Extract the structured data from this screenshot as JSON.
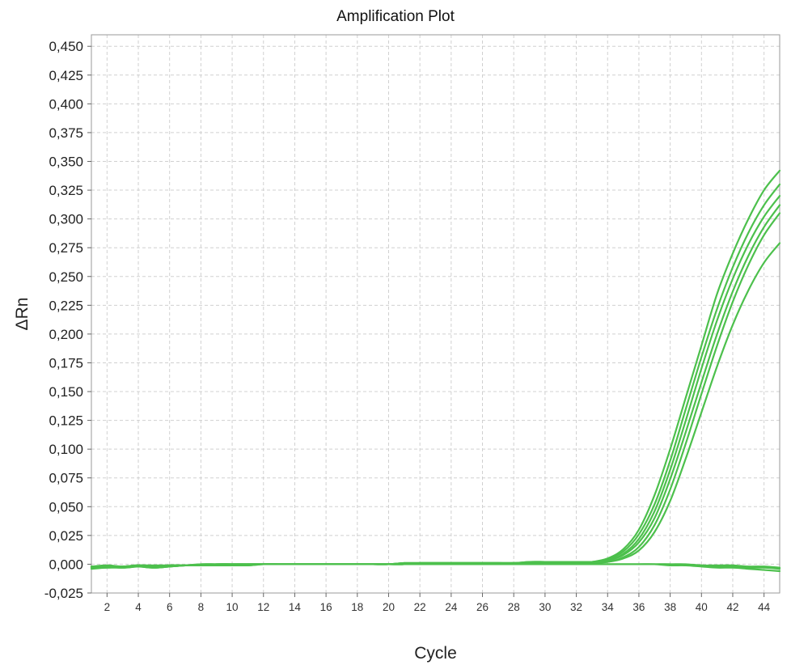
{
  "chart_data": {
    "type": "line",
    "title": "Amplification Plot",
    "xlabel": "Cycle",
    "ylabel": "ΔRn",
    "xlim": [
      1,
      45
    ],
    "ylim": [
      -0.025,
      0.46
    ],
    "grid": true,
    "x_ticks": [
      2,
      4,
      6,
      8,
      10,
      12,
      14,
      16,
      18,
      20,
      22,
      24,
      26,
      28,
      30,
      32,
      34,
      36,
      38,
      40,
      42,
      44
    ],
    "x_tick_labels": [
      "2",
      "4",
      "6",
      "8",
      "10",
      "12",
      "14",
      "16",
      "18",
      "20",
      "22",
      "24",
      "26",
      "28",
      "30",
      "32",
      "34",
      "36",
      "38",
      "40",
      "42",
      "44"
    ],
    "y_ticks": [
      -0.025,
      0,
      0.025,
      0.05,
      0.075,
      0.1,
      0.125,
      0.15,
      0.175,
      0.2,
      0.225,
      0.25,
      0.275,
      0.3,
      0.325,
      0.35,
      0.375,
      0.4,
      0.425,
      0.45
    ],
    "y_tick_labels": [
      "-0,025",
      "0,000",
      "0,025",
      "0,050",
      "0,075",
      "0,100",
      "0,125",
      "0,150",
      "0,175",
      "0,200",
      "0,225",
      "0,250",
      "0,275",
      "0,300",
      "0,325",
      "0,350",
      "0,375",
      "0,400",
      "0,425",
      "0,450"
    ],
    "line_color": "#4cc04c",
    "x": [
      1,
      2,
      3,
      4,
      5,
      6,
      7,
      8,
      9,
      10,
      11,
      12,
      13,
      14,
      15,
      16,
      17,
      18,
      19,
      20,
      21,
      22,
      23,
      24,
      25,
      26,
      27,
      28,
      29,
      30,
      31,
      32,
      33,
      34,
      35,
      36,
      37,
      38,
      39,
      40,
      41,
      42,
      43,
      44,
      45
    ],
    "series": [
      {
        "values": [
          -0.003,
          -0.002,
          -0.003,
          -0.002,
          -0.003,
          -0.002,
          -0.001,
          -0.001,
          -0.001,
          -0.001,
          -0.001,
          0,
          0,
          0,
          0,
          0,
          0,
          0,
          0,
          0,
          0,
          0.001,
          0.001,
          0.001,
          0.001,
          0.001,
          0.001,
          0.001,
          0.001,
          0.001,
          0.001,
          0.001,
          0.002,
          0.005,
          0.013,
          0.03,
          0.06,
          0.1,
          0.145,
          0.19,
          0.235,
          0.27,
          0.3,
          0.325,
          0.342
        ]
      },
      {
        "values": [
          -0.002,
          -0.001,
          -0.002,
          -0.001,
          -0.002,
          -0.001,
          -0.001,
          -0.001,
          0,
          0,
          0,
          0,
          0,
          0,
          0,
          0,
          0,
          0,
          0,
          0,
          0.001,
          0.001,
          0.001,
          0.001,
          0.001,
          0.001,
          0.001,
          0.001,
          0.001,
          0.001,
          0.001,
          0.001,
          0.002,
          0.004,
          0.011,
          0.026,
          0.052,
          0.09,
          0.135,
          0.18,
          0.222,
          0.258,
          0.288,
          0.312,
          0.33
        ]
      },
      {
        "values": [
          -0.003,
          -0.003,
          -0.002,
          -0.002,
          -0.003,
          -0.002,
          -0.001,
          -0.001,
          -0.001,
          -0.001,
          0,
          0,
          0,
          0,
          0,
          0,
          0,
          0,
          0,
          0,
          0,
          0.001,
          0.001,
          0.001,
          0.001,
          0.001,
          0.001,
          0.001,
          0.002,
          0.002,
          0.002,
          0.002,
          0.002,
          0.003,
          0.009,
          0.022,
          0.046,
          0.082,
          0.125,
          0.17,
          0.212,
          0.248,
          0.278,
          0.302,
          0.32
        ]
      },
      {
        "values": [
          -0.002,
          -0.002,
          -0.002,
          -0.001,
          -0.002,
          -0.001,
          -0.001,
          0,
          0,
          0,
          0,
          0,
          0,
          0,
          0,
          0,
          0,
          0,
          0,
          0,
          0.001,
          0.001,
          0.001,
          0.001,
          0.001,
          0.001,
          0.001,
          0.001,
          0.001,
          0.001,
          0.001,
          0.001,
          0.001,
          0.003,
          0.008,
          0.019,
          0.04,
          0.074,
          0.115,
          0.158,
          0.2,
          0.237,
          0.268,
          0.293,
          0.312
        ]
      },
      {
        "values": [
          -0.003,
          -0.002,
          -0.002,
          -0.002,
          -0.002,
          -0.001,
          -0.001,
          -0.001,
          0,
          0,
          0,
          0,
          0,
          0,
          0,
          0,
          0,
          0,
          0,
          0,
          0,
          0.001,
          0.001,
          0.001,
          0.001,
          0.001,
          0.001,
          0.001,
          0.002,
          0.002,
          0.002,
          0.002,
          0.002,
          0.002,
          0.006,
          0.015,
          0.034,
          0.065,
          0.105,
          0.148,
          0.19,
          0.228,
          0.26,
          0.286,
          0.305
        ]
      },
      {
        "values": [
          -0.002,
          -0.002,
          -0.003,
          -0.002,
          -0.002,
          -0.001,
          -0.001,
          -0.001,
          -0.001,
          0,
          0,
          0,
          0,
          0,
          0,
          0,
          0,
          0,
          0,
          0,
          0.001,
          0.001,
          0.001,
          0.001,
          0.001,
          0.001,
          0.001,
          0.001,
          0.001,
          0.001,
          0.001,
          0.001,
          0.001,
          0.002,
          0.005,
          0.012,
          0.028,
          0.055,
          0.092,
          0.132,
          0.172,
          0.208,
          0.238,
          0.262,
          0.279
        ]
      },
      {
        "values": [
          -0.004,
          -0.003,
          -0.003,
          -0.002,
          -0.003,
          -0.002,
          -0.001,
          -0.001,
          -0.001,
          -0.001,
          -0.001,
          0,
          0,
          0,
          0,
          0,
          0,
          0,
          0,
          0,
          0,
          0,
          0,
          0,
          0,
          0,
          0,
          0,
          0,
          0,
          0,
          0,
          0,
          0,
          0,
          0,
          0,
          -0.001,
          -0.001,
          -0.002,
          -0.003,
          -0.003,
          -0.004,
          -0.005,
          -0.006
        ]
      },
      {
        "values": [
          -0.003,
          -0.002,
          -0.002,
          -0.001,
          -0.002,
          -0.002,
          -0.001,
          -0.001,
          0,
          0,
          0,
          0,
          0,
          0,
          0,
          0,
          0,
          0,
          0,
          0,
          0,
          0,
          0,
          0,
          0,
          0,
          0,
          0,
          0,
          0,
          0,
          0,
          0,
          0,
          0,
          0,
          0,
          0,
          -0.001,
          -0.001,
          -0.002,
          -0.002,
          -0.003,
          -0.003,
          -0.004
        ]
      },
      {
        "values": [
          -0.002,
          -0.002,
          -0.002,
          -0.001,
          -0.001,
          -0.001,
          -0.001,
          0,
          0,
          0,
          0,
          0,
          0,
          0,
          0,
          0,
          0,
          0,
          0,
          0,
          0,
          0,
          0,
          0,
          0,
          0,
          0,
          0,
          0,
          0,
          0,
          0,
          0,
          0,
          0,
          0,
          0,
          0,
          0,
          -0.001,
          -0.001,
          -0.001,
          -0.002,
          -0.002,
          -0.003
        ]
      }
    ]
  }
}
